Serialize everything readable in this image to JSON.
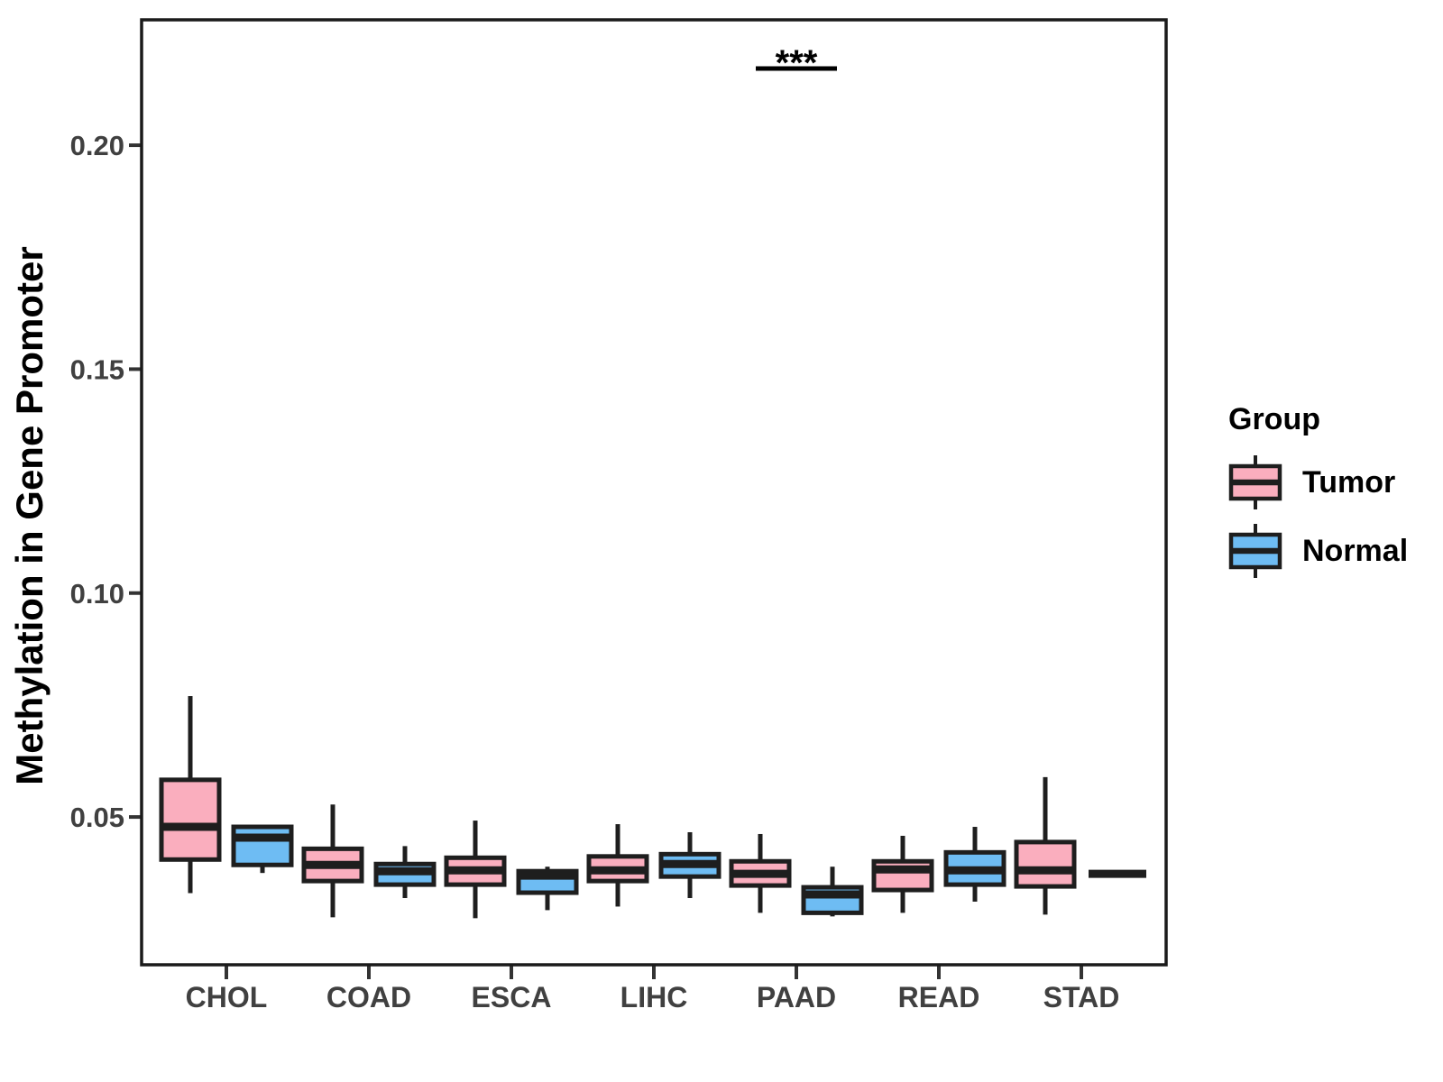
{
  "figure": {
    "y_axis_title": "Methylation in Gene Promoter",
    "legend": {
      "title": "Group",
      "entries": [
        {
          "label": "Tumor",
          "color": "#FAAEBE"
        },
        {
          "label": "Normal",
          "color": "#6EBCF3"
        }
      ]
    },
    "colors": {
      "box_stroke": "#1E1E1E",
      "axis_text": "#404040",
      "tick_mark": "#333333",
      "panel_border": "#1A1A1A",
      "significance": "#000000",
      "background": "#FFFFFF"
    }
  },
  "chart_data": {
    "type": "boxplot",
    "title": "",
    "xlabel": "",
    "ylabel": "Methylation in Gene Promoter",
    "ylim": [
      0.017,
      0.228
    ],
    "grid": false,
    "legend_position": "right",
    "yticks": {
      "values": [
        0.05,
        0.1,
        0.15,
        0.2
      ],
      "labels": [
        "0.05",
        "0.10",
        "0.15",
        "0.20"
      ]
    },
    "categories": [
      "CHOL",
      "COAD",
      "ESCA",
      "LIHC",
      "PAAD",
      "READ",
      "STAD"
    ],
    "series": [
      {
        "name": "Tumor",
        "fill": "#FAAEBE",
        "boxes": [
          {
            "min": 0.033,
            "q1": 0.0405,
            "median": 0.0478,
            "q3": 0.0583,
            "max": 0.077
          },
          {
            "min": 0.0276,
            "q1": 0.0357,
            "median": 0.0393,
            "q3": 0.0429,
            "max": 0.0528
          },
          {
            "min": 0.0274,
            "q1": 0.0349,
            "median": 0.0381,
            "q3": 0.0409,
            "max": 0.0492
          },
          {
            "min": 0.03,
            "q1": 0.0357,
            "median": 0.0381,
            "q3": 0.0412,
            "max": 0.0484
          },
          {
            "min": 0.0286,
            "q1": 0.0347,
            "median": 0.0373,
            "q3": 0.0401,
            "max": 0.0462
          },
          {
            "min": 0.0286,
            "q1": 0.0337,
            "median": 0.0383,
            "q3": 0.0401,
            "max": 0.0458
          },
          {
            "min": 0.0282,
            "q1": 0.0345,
            "median": 0.0381,
            "q3": 0.0444,
            "max": 0.0589
          }
        ]
      },
      {
        "name": "Normal",
        "fill": "#6EBCF3",
        "boxes": [
          {
            "min": 0.0375,
            "q1": 0.0393,
            "median": 0.0454,
            "q3": 0.0478,
            "max": 0.0478
          },
          {
            "min": 0.0319,
            "q1": 0.0349,
            "median": 0.0379,
            "q3": 0.0395,
            "max": 0.0435
          },
          {
            "min": 0.0292,
            "q1": 0.0331,
            "median": 0.0369,
            "q3": 0.0379,
            "max": 0.0389
          },
          {
            "min": 0.0319,
            "q1": 0.0367,
            "median": 0.0395,
            "q3": 0.0417,
            "max": 0.0466
          },
          {
            "min": 0.0278,
            "q1": 0.0286,
            "median": 0.0327,
            "q3": 0.0343,
            "max": 0.0389
          },
          {
            "min": 0.0311,
            "q1": 0.0349,
            "median": 0.0381,
            "q3": 0.0421,
            "max": 0.0478
          },
          {
            "min": 0.0373,
            "q1": 0.0373,
            "median": 0.0373,
            "q3": 0.0373,
            "max": 0.0373
          }
        ]
      }
    ],
    "significance": [
      {
        "category": "PAAD",
        "label": "***"
      }
    ]
  }
}
